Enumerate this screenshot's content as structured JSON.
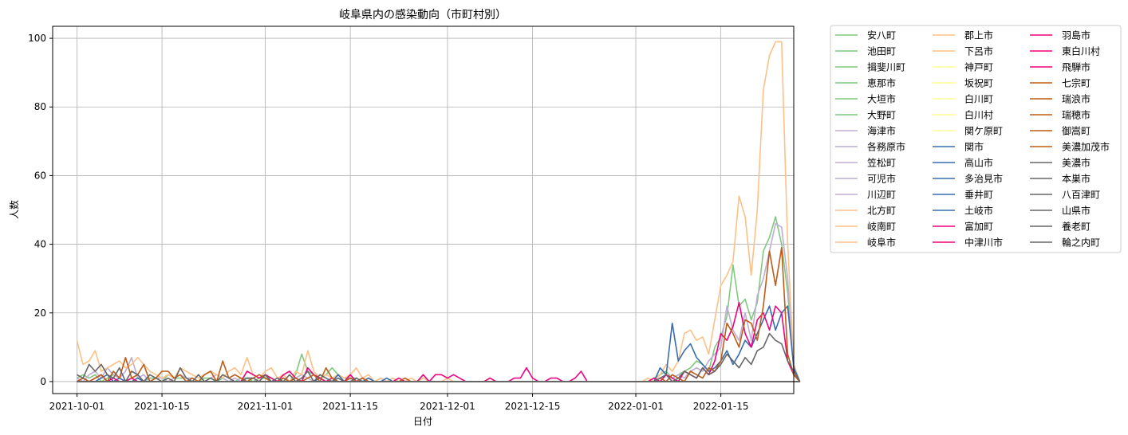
{
  "chart_data": {
    "type": "line",
    "title": "岐阜県内の感染動向（市町村別）",
    "xlabel": "日付",
    "ylabel": "人数",
    "xlim": [
      "2021-09-27",
      "2022-01-27"
    ],
    "ylim": [
      -3.5,
      103.5
    ],
    "x_ticks": [
      "2021-10-01",
      "2021-10-15",
      "2021-11-01",
      "2021-11-15",
      "2021-12-01",
      "2021-12-15",
      "2022-01-01",
      "2022-01-15"
    ],
    "y_ticks": [
      0,
      20,
      40,
      60,
      80,
      100
    ],
    "grid": true,
    "legend_position": "outside-right",
    "legend_columns": 3,
    "series": [
      {
        "name": "安八町",
        "color": "#7fc97f",
        "values": [
          0
        ]
      },
      {
        "name": "池田町",
        "color": "#7fc97f",
        "values": [
          0
        ]
      },
      {
        "name": "揖斐川町",
        "color": "#7fc97f",
        "values": [
          0
        ]
      },
      {
        "name": "恵那市",
        "color": "#7fc97f",
        "values": [
          0
        ]
      },
      {
        "name": "大垣市",
        "color": "#7fc97f",
        "values": [
          1,
          2,
          1,
          2,
          0,
          1,
          2,
          1,
          0,
          1,
          2,
          0,
          1,
          1,
          0,
          2,
          1,
          1,
          1,
          0,
          0,
          1,
          1,
          0,
          1,
          0,
          0,
          1,
          1,
          0,
          1,
          1,
          1,
          0,
          1,
          0,
          2,
          8,
          3,
          2,
          1,
          2,
          4,
          2,
          1,
          1,
          1,
          0,
          1,
          0,
          1,
          0,
          1,
          0,
          0,
          0,
          0,
          0,
          0,
          0,
          0,
          0,
          0,
          0,
          0,
          0,
          0,
          0,
          0,
          0,
          0,
          0,
          0,
          0,
          0,
          0,
          0,
          0,
          0,
          0,
          0,
          0,
          0,
          0,
          0,
          0,
          0,
          0,
          0,
          0,
          0,
          0,
          0,
          0,
          0,
          1,
          2,
          3,
          1,
          2,
          3,
          4,
          6,
          5,
          3,
          10,
          13,
          19,
          34,
          22,
          24,
          18,
          23,
          38,
          42,
          48,
          40,
          26,
          4,
          0
        ]
      },
      {
        "name": "大野町",
        "color": "#7fc97f",
        "values": [
          0
        ]
      },
      {
        "name": "海津市",
        "color": "#beaed4",
        "values": [
          0
        ]
      },
      {
        "name": "各務原市",
        "color": "#beaed4",
        "values": [
          1,
          0,
          2,
          3,
          1,
          4,
          2,
          1,
          3,
          7,
          1,
          2,
          0,
          1,
          1,
          0,
          1,
          2,
          1,
          1,
          0,
          0,
          1,
          2,
          1,
          0,
          1,
          0,
          1,
          1,
          0,
          2,
          1,
          0,
          1,
          0,
          1,
          2,
          1,
          0,
          2,
          1,
          0,
          1,
          0,
          1,
          0,
          0,
          1,
          0,
          1,
          0,
          0,
          0,
          0,
          0,
          0,
          0,
          0,
          0,
          0,
          0,
          0,
          0,
          0,
          0,
          0,
          0,
          0,
          0,
          0,
          0,
          0,
          0,
          0,
          0,
          0,
          0,
          0,
          0,
          0,
          0,
          0,
          0,
          0,
          0,
          0,
          0,
          0,
          0,
          0,
          0,
          0,
          0,
          0,
          0,
          1,
          2,
          1,
          2,
          1,
          3,
          4,
          3,
          6,
          8,
          10,
          22,
          15,
          12,
          20,
          12,
          25,
          30,
          38,
          46,
          45,
          30,
          3,
          0
        ]
      },
      {
        "name": "笠松町",
        "color": "#beaed4",
        "values": [
          0
        ]
      },
      {
        "name": "可児市",
        "color": "#beaed4",
        "values": [
          0
        ]
      },
      {
        "name": "川辺町",
        "color": "#beaed4",
        "values": [
          0
        ]
      },
      {
        "name": "北方町",
        "color": "#fdc086",
        "values": [
          0
        ]
      },
      {
        "name": "岐南町",
        "color": "#fdc086",
        "values": [
          0
        ]
      },
      {
        "name": "岐阜市",
        "color": "#fdc086",
        "values": [
          12,
          5,
          6,
          9,
          3,
          4,
          5,
          6,
          4,
          5,
          7,
          5,
          3,
          2,
          1,
          2,
          1,
          4,
          3,
          2,
          1,
          2,
          3,
          2,
          1,
          3,
          4,
          2,
          7,
          2,
          1,
          3,
          4,
          1,
          2,
          0,
          3,
          2,
          9,
          3,
          1,
          2,
          1,
          2,
          1,
          2,
          4,
          1,
          2,
          0,
          1,
          0,
          1,
          0,
          0,
          1,
          0,
          1,
          0,
          0,
          0,
          1,
          0,
          0,
          0,
          0,
          0,
          0,
          1,
          0,
          0,
          0,
          0,
          0,
          0,
          0,
          0,
          0,
          0,
          0,
          0,
          0,
          0,
          0,
          0,
          0,
          0,
          0,
          0,
          0,
          0,
          0,
          0,
          0,
          1,
          0,
          2,
          5,
          3,
          6,
          14,
          15,
          12,
          13,
          8,
          18,
          28,
          31,
          35,
          54,
          48,
          31,
          50,
          85,
          95,
          99,
          99,
          40,
          5,
          0
        ]
      },
      {
        "name": "郡上市",
        "color": "#fdc086",
        "values": [
          0
        ]
      },
      {
        "name": "下呂市",
        "color": "#fdc086",
        "values": [
          0
        ]
      },
      {
        "name": "神戸町",
        "color": "#ffff99",
        "values": [
          0
        ]
      },
      {
        "name": "坂祝町",
        "color": "#ffff99",
        "values": [
          0
        ]
      },
      {
        "name": "白川町",
        "color": "#ffff99",
        "values": [
          0
        ]
      },
      {
        "name": "白川村",
        "color": "#ffff99",
        "values": [
          0
        ]
      },
      {
        "name": "関ケ原町",
        "color": "#ffff99",
        "values": [
          0
        ]
      },
      {
        "name": "関市",
        "color": "#386cb0",
        "values": [
          0
        ]
      },
      {
        "name": "高山市",
        "color": "#386cb0",
        "values": [
          0
        ]
      },
      {
        "name": "多治見市",
        "color": "#386cb0",
        "values": [
          0,
          1,
          0,
          0,
          1,
          2,
          0,
          1,
          0,
          0,
          1,
          0,
          0,
          0,
          0,
          0,
          0,
          0,
          0,
          0,
          0,
          0,
          0,
          0,
          0,
          0,
          0,
          0,
          0,
          0,
          0,
          0,
          0,
          0,
          0,
          0,
          1,
          0,
          0,
          0,
          1,
          0,
          0,
          2,
          0,
          0,
          0,
          0,
          1,
          0,
          0,
          1,
          0,
          0,
          0,
          0,
          0,
          0,
          0,
          0,
          0,
          0,
          0,
          0,
          0,
          0,
          0,
          0,
          0,
          0,
          0,
          0,
          0,
          0,
          0,
          0,
          0,
          0,
          0,
          0,
          0,
          0,
          0,
          0,
          0,
          0,
          0,
          0,
          0,
          0,
          0,
          0,
          0,
          0,
          0,
          0,
          4,
          2,
          17,
          6,
          9,
          11,
          7,
          5,
          3,
          4,
          6,
          9,
          5,
          8,
          12,
          10,
          14,
          18,
          22,
          15,
          20,
          22,
          4,
          0
        ]
      },
      {
        "name": "垂井町",
        "color": "#386cb0",
        "values": [
          0
        ]
      },
      {
        "name": "土岐市",
        "color": "#386cb0",
        "values": [
          0
        ]
      },
      {
        "name": "富加町",
        "color": "#f0027f",
        "values": [
          0
        ]
      },
      {
        "name": "中津川市",
        "color": "#f0027f",
        "values": [
          0,
          0,
          0,
          1,
          2,
          0,
          1,
          0,
          0,
          1,
          0,
          0,
          0,
          0,
          0,
          0,
          0,
          0,
          0,
          0,
          0,
          0,
          0,
          0,
          0,
          0,
          0,
          0,
          3,
          2,
          1,
          2,
          1,
          0,
          2,
          3,
          1,
          0,
          4,
          2,
          1,
          0,
          1,
          0,
          0,
          2,
          0,
          1,
          0,
          0,
          0,
          0,
          0,
          1,
          0,
          0,
          0,
          2,
          0,
          2,
          2,
          1,
          2,
          1,
          0,
          0,
          0,
          0,
          1,
          0,
          0,
          0,
          1,
          1,
          4,
          1,
          0,
          0,
          1,
          1,
          0,
          0,
          1,
          3,
          0,
          0,
          0,
          0,
          0,
          0,
          0,
          0,
          0,
          0,
          0,
          1,
          0,
          2,
          1,
          0,
          3,
          2,
          1,
          4,
          2,
          6,
          14,
          12,
          16,
          23,
          14,
          10,
          18,
          20,
          15,
          22,
          20,
          6,
          2,
          0
        ]
      },
      {
        "name": "羽島市",
        "color": "#f0027f",
        "values": [
          0
        ]
      },
      {
        "name": "東白川村",
        "color": "#f0027f",
        "values": [
          0
        ]
      },
      {
        "name": "飛騨市",
        "color": "#f0027f",
        "values": [
          0
        ]
      },
      {
        "name": "七宗町",
        "color": "#bf5b17",
        "values": [
          0
        ]
      },
      {
        "name": "瑞浪市",
        "color": "#bf5b17",
        "values": [
          0
        ]
      },
      {
        "name": "瑞穂市",
        "color": "#bf5b17",
        "values": [
          0
        ]
      },
      {
        "name": "御嵩町",
        "color": "#bf5b17",
        "values": [
          0
        ]
      },
      {
        "name": "美濃加茂市",
        "color": "#bf5b17",
        "values": [
          0,
          1,
          0,
          1,
          2,
          0,
          3,
          1,
          7,
          1,
          2,
          5,
          0,
          1,
          3,
          3,
          1,
          2,
          0,
          1,
          0,
          2,
          3,
          0,
          6,
          1,
          2,
          1,
          0,
          1,
          2,
          1,
          0,
          0,
          1,
          0,
          1,
          0,
          1,
          2,
          0,
          4,
          1,
          0,
          0,
          1,
          0,
          1,
          0,
          0,
          0,
          0,
          0,
          0,
          1,
          0,
          0,
          0,
          0,
          0,
          0,
          0,
          0,
          0,
          0,
          0,
          0,
          0,
          0,
          0,
          0,
          0,
          0,
          0,
          0,
          0,
          0,
          0,
          0,
          0,
          0,
          0,
          0,
          0,
          0,
          0,
          0,
          0,
          0,
          0,
          0,
          0,
          0,
          0,
          0,
          0,
          1,
          0,
          2,
          1,
          0,
          3,
          2,
          1,
          4,
          3,
          6,
          17,
          14,
          10,
          18,
          17,
          12,
          22,
          38,
          28,
          39,
          8,
          2,
          0
        ]
      },
      {
        "name": "美濃市",
        "color": "#666666",
        "values": [
          0
        ]
      },
      {
        "name": "本巣市",
        "color": "#666666",
        "values": [
          0
        ]
      },
      {
        "name": "八百津町",
        "color": "#666666",
        "values": [
          0
        ]
      },
      {
        "name": "山県市",
        "color": "#666666",
        "values": [
          0
        ]
      },
      {
        "name": "養老町",
        "color": "#666666",
        "values": [
          0
        ]
      },
      {
        "name": "輪之内町",
        "color": "#666666",
        "values": [
          2,
          1,
          5,
          3,
          5,
          2,
          1,
          4,
          0,
          3,
          2,
          0,
          2,
          1,
          0,
          1,
          0,
          4,
          1,
          0,
          2,
          0,
          1,
          0,
          2,
          1,
          0,
          0,
          1,
          1,
          0,
          2,
          0,
          1,
          0,
          2,
          0,
          1,
          3,
          0,
          2,
          1,
          0,
          1,
          0,
          0,
          1,
          0,
          0,
          0,
          0,
          0,
          0,
          0,
          0,
          0,
          0,
          0,
          0,
          0,
          0,
          0,
          0,
          0,
          0,
          0,
          0,
          0,
          0,
          0,
          0,
          0,
          0,
          0,
          0,
          0,
          0,
          0,
          0,
          0,
          0,
          0,
          0,
          0,
          0,
          0,
          0,
          0,
          0,
          0,
          0,
          0,
          0,
          0,
          0,
          0,
          1,
          2,
          0,
          1,
          3,
          2,
          1,
          4,
          2,
          3,
          5,
          8,
          6,
          4,
          7,
          5,
          9,
          10,
          14,
          12,
          11,
          6,
          3,
          0
        ]
      }
    ]
  }
}
